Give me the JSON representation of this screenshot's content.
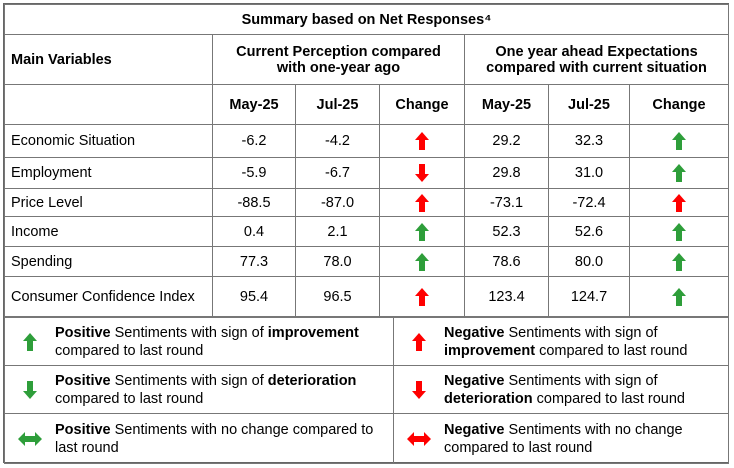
{
  "header": {
    "title": "Summary based on Net Responses⁴",
    "main_variables": "Main Variables",
    "current": "Current Perception compared with one-year ago",
    "expectations": "One year ahead Expectations compared with current situation",
    "subheaders": [
      "May-25",
      "Jul-25",
      "Change",
      "May-25",
      "Jul-25",
      "Change"
    ]
  },
  "table": {
    "rows": [
      [
        "Economic Situation",
        "-6.2",
        "-4.2",
        "29.2",
        "32.3"
      ],
      [
        "Employment",
        "-5.9",
        "-6.7",
        "29.8",
        "31.0"
      ],
      [
        "Price Level",
        "-88.5",
        "-87.0",
        "-73.1",
        "-72.4"
      ],
      [
        "Income",
        "0.4",
        "2.1",
        "52.3",
        "52.6"
      ],
      [
        "Spending",
        "77.3",
        "78.0",
        "78.6",
        "80.0"
      ],
      [
        "Consumer Confidence Index",
        "95.4",
        "96.5",
        "123.4",
        "124.7"
      ]
    ]
  },
  "legend": {
    "items": [
      [
        "Positive",
        " Sentiments with sign of ",
        "improvement",
        " compared to last round"
      ],
      [
        "Negative",
        " Sentiments with sign of ",
        "improvement",
        " compared to last round"
      ],
      [
        "Positive",
        " Sentiments with sign of ",
        "deterioration",
        " compared to last round"
      ],
      [
        "Negative",
        " Sentiments with sign of ",
        "deterioration",
        " compared to last round"
      ],
      [
        "Positive",
        " Sentiments with no change compared to last round"
      ],
      [
        "Negative",
        " Sentiments with no change compared to last round"
      ]
    ]
  }
}
